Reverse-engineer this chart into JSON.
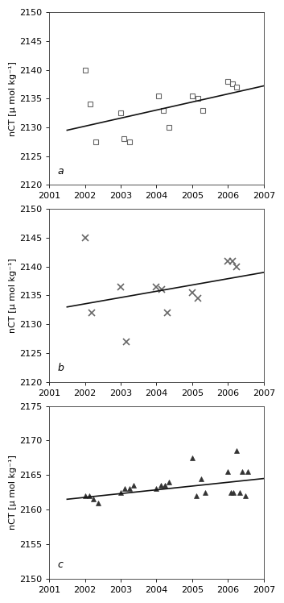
{
  "panel_a": {
    "label": "a",
    "marker": "s",
    "markersize": 5,
    "markerfacecolor": "white",
    "markeredgecolor": "#666666",
    "markeredgewidth": 0.8,
    "x": [
      2002.0,
      2002.15,
      2002.3,
      2003.0,
      2003.1,
      2003.25,
      2004.05,
      2004.2,
      2004.35,
      2005.0,
      2005.15,
      2005.3,
      2006.0,
      2006.12,
      2006.25
    ],
    "y": [
      2140.0,
      2134.0,
      2127.5,
      2132.5,
      2128.0,
      2127.5,
      2135.5,
      2133.0,
      2130.0,
      2135.5,
      2135.0,
      2133.0,
      2138.0,
      2137.5,
      2137.0
    ],
    "trend_x": [
      2001.5,
      2007.0
    ],
    "trend_y": [
      2129.5,
      2137.2
    ],
    "ylim": [
      2120,
      2150
    ],
    "yticks": [
      2120,
      2125,
      2130,
      2135,
      2140,
      2145,
      2150
    ],
    "ylabel": "nCT [μ mol kg⁻¹]"
  },
  "panel_b": {
    "label": "b",
    "marker": "x",
    "markersize": 6,
    "markeredgecolor": "#666666",
    "markeredgewidth": 1.2,
    "x": [
      2002.0,
      2002.2,
      2003.0,
      2003.15,
      2004.0,
      2004.15,
      2004.3,
      2005.0,
      2005.15,
      2006.0,
      2006.12,
      2006.25
    ],
    "y": [
      2145.0,
      2132.0,
      2136.5,
      2127.0,
      2136.5,
      2136.0,
      2132.0,
      2135.5,
      2134.5,
      2141.0,
      2141.0,
      2140.0
    ],
    "trend_x": [
      2001.5,
      2007.0
    ],
    "trend_y": [
      2133.0,
      2139.0
    ],
    "ylim": [
      2120,
      2150
    ],
    "yticks": [
      2120,
      2125,
      2130,
      2135,
      2140,
      2145,
      2150
    ],
    "ylabel": "nCT [μ mol kg⁻¹]"
  },
  "panel_c": {
    "label": "c",
    "marker": "^",
    "markersize": 5,
    "markerfacecolor": "#333333",
    "markeredgecolor": "#333333",
    "markeredgewidth": 0.5,
    "x": [
      2002.0,
      2002.12,
      2002.24,
      2002.36,
      2003.0,
      2003.12,
      2003.24,
      2003.36,
      2004.0,
      2004.12,
      2004.24,
      2004.36,
      2005.0,
      2005.12,
      2005.24,
      2005.36,
      2006.0,
      2006.08,
      2006.16,
      2006.24,
      2006.32,
      2006.4,
      2006.48,
      2006.56
    ],
    "y": [
      2162.0,
      2162.0,
      2161.5,
      2161.0,
      2162.5,
      2163.0,
      2163.0,
      2163.5,
      2163.0,
      2163.5,
      2163.5,
      2164.0,
      2167.5,
      2162.0,
      2164.5,
      2162.5,
      2165.5,
      2162.5,
      2162.5,
      2168.5,
      2162.5,
      2165.5,
      2162.0,
      2165.5
    ],
    "trend_x": [
      2001.5,
      2007.0
    ],
    "trend_y": [
      2161.5,
      2164.5
    ],
    "ylim": [
      2150,
      2175
    ],
    "yticks": [
      2150,
      2155,
      2160,
      2165,
      2170,
      2175
    ],
    "ylabel": "nCT [μ mol kg⁻¹]"
  },
  "xlim": [
    2001,
    2007
  ],
  "xticks": [
    2001,
    2002,
    2003,
    2004,
    2005,
    2006,
    2007
  ],
  "trend_color": "#111111",
  "trend_linewidth": 1.2,
  "bgcolor": "white",
  "label_fontsize": 9,
  "tick_fontsize": 8,
  "ylabel_fontsize": 8
}
